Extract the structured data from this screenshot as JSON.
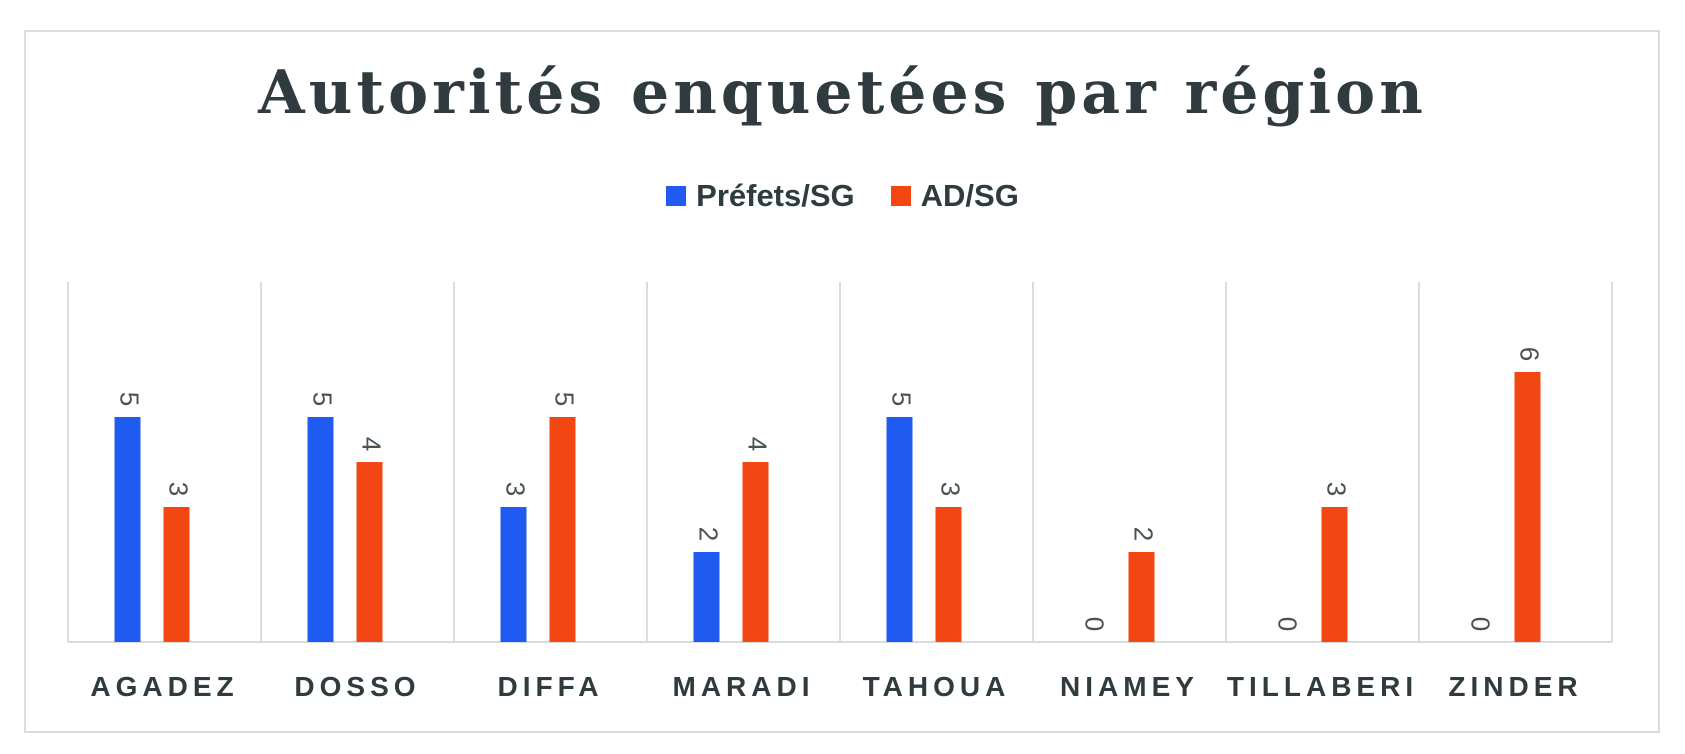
{
  "chart_data": {
    "type": "bar",
    "title": "Autorités enquetées par région",
    "categories": [
      "AGADEZ",
      "DOSSO",
      "DIFFA",
      "MARADI",
      "TAHOUA",
      "NIAMEY",
      "TILLABERI",
      "ZINDER"
    ],
    "series": [
      {
        "name": "Préfets/SG",
        "color": "#1f5bf0",
        "values": [
          5,
          5,
          3,
          2,
          5,
          0,
          0,
          0
        ]
      },
      {
        "name": "AD/SG",
        "color": "#f24613",
        "values": [
          3,
          4,
          5,
          4,
          3,
          2,
          3,
          6
        ]
      }
    ],
    "ylim": [
      0,
      8
    ],
    "grid": "vertical category separators",
    "legend_position": "top-center",
    "data_labels": true
  }
}
